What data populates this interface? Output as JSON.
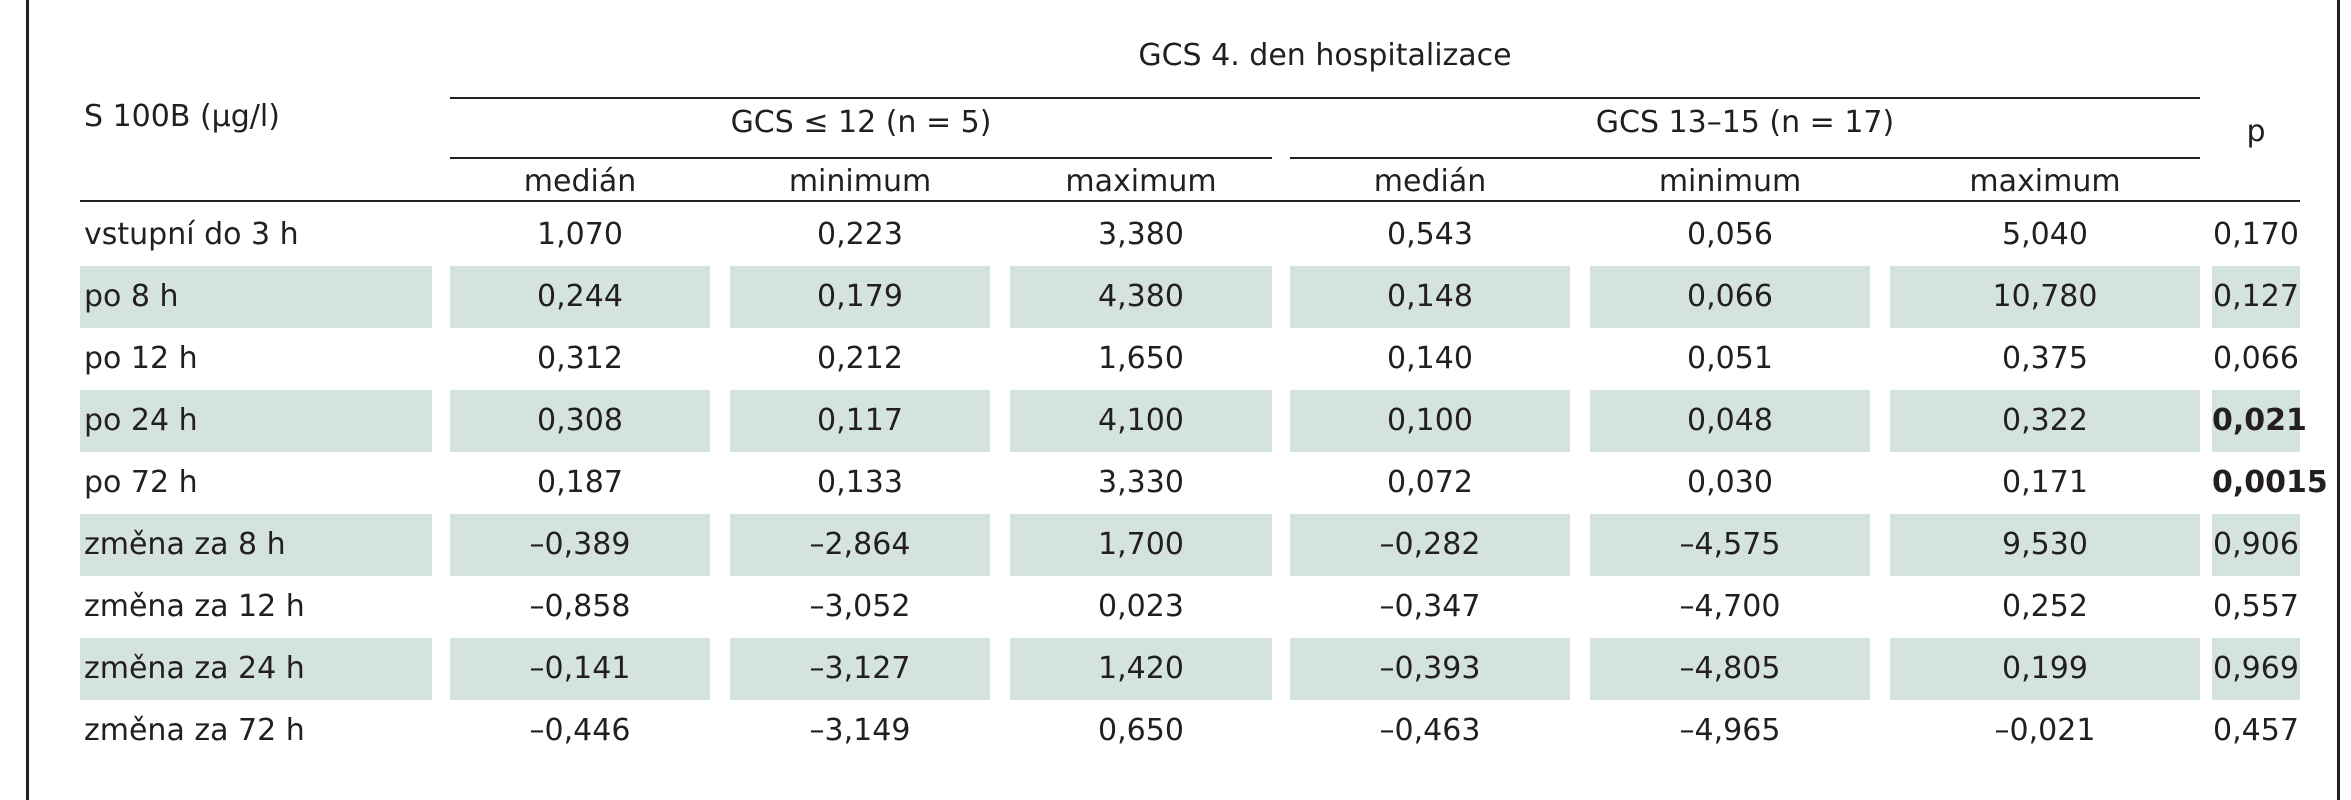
{
  "table": {
    "row_header": "S 100B (µg/l)",
    "group_header": "GCS 4. den hospitalizace",
    "subgroups": [
      "GCS ≤ 12 (n = 5)",
      "GCS 13–15 (n = 17)"
    ],
    "p_header": "p",
    "stat_headers": [
      "medián",
      "minimum",
      "maximum",
      "medián",
      "minimum",
      "maximum"
    ],
    "rows": [
      {
        "label": "vstupní do 3 h",
        "values": [
          "1,070",
          "0,223",
          "3,380",
          "0,543",
          "0,056",
          "5,040"
        ],
        "p": "0,170",
        "p_bold": false,
        "shaded": false
      },
      {
        "label": "po 8 h",
        "values": [
          "0,244",
          "0,179",
          "4,380",
          "0,148",
          "0,066",
          "10,780"
        ],
        "p": "0,127",
        "p_bold": false,
        "shaded": true
      },
      {
        "label": "po 12 h",
        "values": [
          "0,312",
          "0,212",
          "1,650",
          "0,140",
          "0,051",
          "0,375"
        ],
        "p": "0,066",
        "p_bold": false,
        "shaded": false
      },
      {
        "label": "po 24 h",
        "values": [
          "0,308",
          "0,117",
          "4,100",
          "0,100",
          "0,048",
          "0,322"
        ],
        "p": "0,021",
        "p_bold": true,
        "shaded": true
      },
      {
        "label": "po 72 h",
        "values": [
          "0,187",
          "0,133",
          "3,330",
          "0,072",
          "0,030",
          "0,171"
        ],
        "p": "0,0015",
        "p_bold": true,
        "shaded": false
      },
      {
        "label": "změna za 8 h",
        "values": [
          "–0,389",
          "–2,864",
          "1,700",
          "–0,282",
          "–4,575",
          "9,530"
        ],
        "p": "0,906",
        "p_bold": false,
        "shaded": true
      },
      {
        "label": "změna za 12 h",
        "values": [
          "–0,858",
          "–3,052",
          "0,023",
          "–0,347",
          "–4,700",
          "0,252"
        ],
        "p": "0,557",
        "p_bold": false,
        "shaded": false
      },
      {
        "label": "změna za 24 h",
        "values": [
          "–0,141",
          "–3,127",
          "1,420",
          "–0,393",
          "–4,805",
          "0,199"
        ],
        "p": "0,969",
        "p_bold": false,
        "shaded": true
      },
      {
        "label": "změna za 72 h",
        "values": [
          "–0,446",
          "–3,149",
          "0,650",
          "–0,463",
          "–4,965",
          "–0,021"
        ],
        "p": "0,457",
        "p_bold": false,
        "shaded": false
      }
    ]
  },
  "colors": {
    "shade": "#d5e3e0",
    "text": "#231f20",
    "rule": "#231f20"
  }
}
